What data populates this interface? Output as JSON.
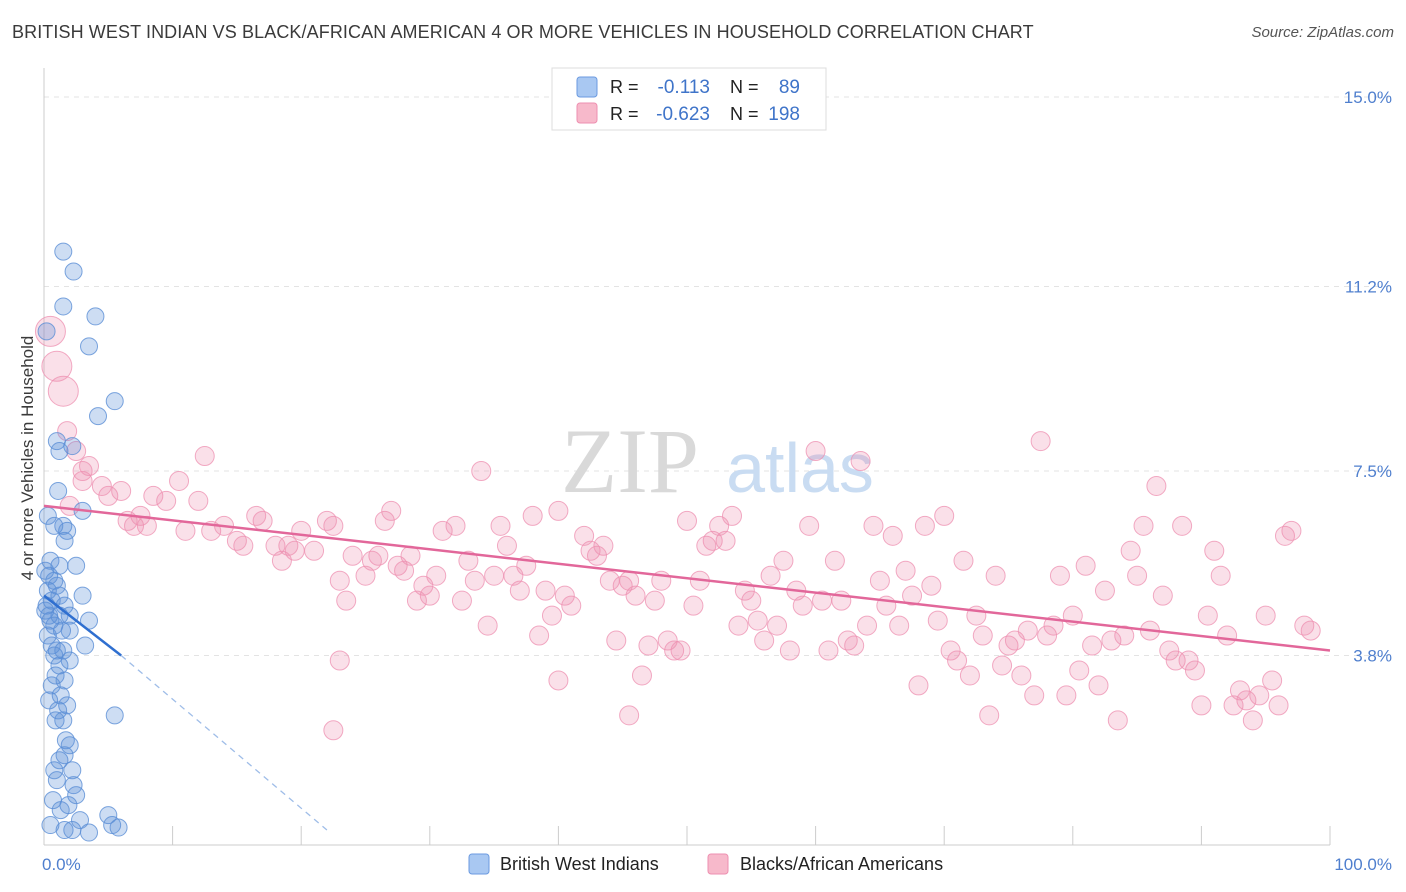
{
  "title": "BRITISH WEST INDIAN VS BLACK/AFRICAN AMERICAN 4 OR MORE VEHICLES IN HOUSEHOLD CORRELATION CHART",
  "source": "Source: ZipAtlas.com",
  "watermark": {
    "zip": "ZIP",
    "atlas": "atlas"
  },
  "legend_top": {
    "r_label": "R =",
    "n_label": "N =",
    "rows": [
      {
        "swatch": "#a9c8f2",
        "r": "-0.113",
        "n": "89"
      },
      {
        "swatch": "#f7b9cb",
        "r": "-0.623",
        "n": "198"
      }
    ]
  },
  "legend_bottom": [
    {
      "label": "British West Indians",
      "swatch": "#a9c8f2"
    },
    {
      "label": "Blacks/African Americans",
      "swatch": "#f7b9cb"
    }
  ],
  "colors": {
    "blue": "#5b8fd6",
    "blue_line": "#2f6fd0",
    "pink": "#ee8fb0",
    "pink_line": "#e2679a",
    "tick": "#4f7fce"
  },
  "chart_data": {
    "type": "scatter",
    "title": "BRITISH WEST INDIAN VS BLACK/AFRICAN AMERICAN 4 OR MORE VEHICLES IN HOUSEHOLD CORRELATION CHART",
    "xlabel": "",
    "ylabel": "4 or more Vehicles in Household",
    "xlim": [
      0,
      100
    ],
    "ylim": [
      0,
      15.5
    ],
    "x_tick_labels": [
      "0.0%",
      "100.0%"
    ],
    "y_ticks": [
      3.8,
      7.5,
      11.2,
      15.0
    ],
    "y_tick_labels": [
      "3.8%",
      "7.5%",
      "11.2%",
      "15.0%"
    ],
    "grid": true,
    "legend_position": "top-center",
    "series": [
      {
        "name": "British West Indians",
        "r": -0.113,
        "n": 89,
        "trend": {
          "x": [
            0,
            6
          ],
          "y": [
            5.0,
            3.8
          ]
        },
        "trend_extension": {
          "x": [
            6,
            22
          ],
          "y": [
            3.8,
            0.3
          ]
        },
        "points": [
          [
            1.5,
            11.9
          ],
          [
            2.3,
            11.5
          ],
          [
            1.5,
            10.8
          ],
          [
            4.0,
            10.6
          ],
          [
            0.2,
            10.3
          ],
          [
            3.5,
            10.0
          ],
          [
            5.5,
            8.9
          ],
          [
            4.2,
            8.6
          ],
          [
            2.2,
            8.0
          ],
          [
            1.0,
            8.1
          ],
          [
            1.2,
            7.9
          ],
          [
            1.1,
            7.1
          ],
          [
            3.0,
            6.7
          ],
          [
            0.3,
            6.6
          ],
          [
            1.5,
            6.4
          ],
          [
            0.8,
            6.4
          ],
          [
            1.8,
            6.3
          ],
          [
            1.6,
            6.1
          ],
          [
            0.5,
            5.7
          ],
          [
            1.2,
            5.6
          ],
          [
            2.5,
            5.6
          ],
          [
            0.1,
            5.5
          ],
          [
            0.4,
            5.4
          ],
          [
            0.8,
            5.3
          ],
          [
            1.0,
            5.2
          ],
          [
            0.3,
            5.1
          ],
          [
            3.0,
            5.0
          ],
          [
            1.2,
            5.0
          ],
          [
            0.6,
            4.9
          ],
          [
            0.2,
            4.8
          ],
          [
            1.6,
            4.8
          ],
          [
            0.1,
            4.7
          ],
          [
            0.4,
            4.6
          ],
          [
            2.0,
            4.6
          ],
          [
            1.2,
            4.6
          ],
          [
            0.5,
            4.5
          ],
          [
            3.5,
            4.5
          ],
          [
            0.8,
            4.4
          ],
          [
            1.4,
            4.3
          ],
          [
            2.0,
            4.3
          ],
          [
            0.3,
            4.2
          ],
          [
            0.6,
            4.0
          ],
          [
            3.2,
            4.0
          ],
          [
            1.0,
            3.9
          ],
          [
            1.5,
            3.9
          ],
          [
            0.8,
            3.8
          ],
          [
            2.0,
            3.7
          ],
          [
            1.2,
            3.6
          ],
          [
            0.9,
            3.4
          ],
          [
            1.6,
            3.3
          ],
          [
            0.6,
            3.2
          ],
          [
            1.3,
            3.0
          ],
          [
            0.4,
            2.9
          ],
          [
            1.8,
            2.8
          ],
          [
            1.1,
            2.7
          ],
          [
            5.5,
            2.6
          ],
          [
            1.5,
            2.5
          ],
          [
            0.9,
            2.5
          ],
          [
            1.7,
            2.1
          ],
          [
            2.0,
            2.0
          ],
          [
            1.6,
            1.8
          ],
          [
            1.2,
            1.7
          ],
          [
            2.2,
            1.5
          ],
          [
            0.8,
            1.5
          ],
          [
            1.0,
            1.3
          ],
          [
            2.3,
            1.2
          ],
          [
            2.5,
            1.0
          ],
          [
            0.7,
            0.9
          ],
          [
            1.9,
            0.8
          ],
          [
            5.0,
            0.6
          ],
          [
            5.3,
            0.4
          ],
          [
            2.2,
            0.3
          ],
          [
            1.6,
            0.3
          ],
          [
            3.5,
            0.25
          ],
          [
            5.8,
            0.35
          ],
          [
            1.3,
            0.7
          ],
          [
            2.8,
            0.5
          ],
          [
            0.5,
            0.4
          ]
        ]
      },
      {
        "name": "Blacks/African Americans",
        "r": -0.623,
        "n": 198,
        "trend": {
          "x": [
            0,
            100
          ],
          "y": [
            6.8,
            3.9
          ]
        },
        "points": [
          [
            0.5,
            10.3
          ],
          [
            1.0,
            9.6
          ],
          [
            1.5,
            9.1
          ],
          [
            1.8,
            8.3
          ],
          [
            2.5,
            7.9
          ],
          [
            3.0,
            7.5
          ],
          [
            3.5,
            7.6
          ],
          [
            4.5,
            7.2
          ],
          [
            5.0,
            7.0
          ],
          [
            6.0,
            7.1
          ],
          [
            6.5,
            6.5
          ],
          [
            7.0,
            6.4
          ],
          [
            7.5,
            6.6
          ],
          [
            8.0,
            6.4
          ],
          [
            8.5,
            7.0
          ],
          [
            9.5,
            6.9
          ],
          [
            10.5,
            7.3
          ],
          [
            11.0,
            6.3
          ],
          [
            12.0,
            6.9
          ],
          [
            12.5,
            7.8
          ],
          [
            13.0,
            6.3
          ],
          [
            14.0,
            6.4
          ],
          [
            15.0,
            6.1
          ],
          [
            15.5,
            6.0
          ],
          [
            16.5,
            6.6
          ],
          [
            17.0,
            6.5
          ],
          [
            18.0,
            6.0
          ],
          [
            18.5,
            5.7
          ],
          [
            19.0,
            6.0
          ],
          [
            19.5,
            5.9
          ],
          [
            20.0,
            6.3
          ],
          [
            21.0,
            5.9
          ],
          [
            22.0,
            6.5
          ],
          [
            22.5,
            6.4
          ],
          [
            23.0,
            5.3
          ],
          [
            23.5,
            4.9
          ],
          [
            24.0,
            5.8
          ],
          [
            25.0,
            5.4
          ],
          [
            25.5,
            5.7
          ],
          [
            26.0,
            5.8
          ],
          [
            26.5,
            6.5
          ],
          [
            27.0,
            6.7
          ],
          [
            27.5,
            5.6
          ],
          [
            28.0,
            5.5
          ],
          [
            28.5,
            5.8
          ],
          [
            29.0,
            4.9
          ],
          [
            29.5,
            5.2
          ],
          [
            30.0,
            5.0
          ],
          [
            30.5,
            5.4
          ],
          [
            31.0,
            6.3
          ],
          [
            32.0,
            6.4
          ],
          [
            32.5,
            4.9
          ],
          [
            33.0,
            5.7
          ],
          [
            33.5,
            5.3
          ],
          [
            34.0,
            7.5
          ],
          [
            34.5,
            4.4
          ],
          [
            35.0,
            5.4
          ],
          [
            35.5,
            6.4
          ],
          [
            36.0,
            6.0
          ],
          [
            36.5,
            5.4
          ],
          [
            37.0,
            5.1
          ],
          [
            37.5,
            5.6
          ],
          [
            38.0,
            6.6
          ],
          [
            38.5,
            4.2
          ],
          [
            39.0,
            5.1
          ],
          [
            39.5,
            4.6
          ],
          [
            40.0,
            6.7
          ],
          [
            40.5,
            5.0
          ],
          [
            41.0,
            4.8
          ],
          [
            42.0,
            6.2
          ],
          [
            42.5,
            5.9
          ],
          [
            43.0,
            5.8
          ],
          [
            43.5,
            6.0
          ],
          [
            44.0,
            5.3
          ],
          [
            44.5,
            4.1
          ],
          [
            45.0,
            5.2
          ],
          [
            45.5,
            5.3
          ],
          [
            46.0,
            5.0
          ],
          [
            46.5,
            3.4
          ],
          [
            47.0,
            4.0
          ],
          [
            47.5,
            4.9
          ],
          [
            48.0,
            5.3
          ],
          [
            48.5,
            4.1
          ],
          [
            49.0,
            3.9
          ],
          [
            49.5,
            3.9
          ],
          [
            50.0,
            6.5
          ],
          [
            50.5,
            4.8
          ],
          [
            51.0,
            5.3
          ],
          [
            51.5,
            6.0
          ],
          [
            52.0,
            6.1
          ],
          [
            52.5,
            6.4
          ],
          [
            53.0,
            6.1
          ],
          [
            53.5,
            6.6
          ],
          [
            54.0,
            4.4
          ],
          [
            54.5,
            5.1
          ],
          [
            55.0,
            4.9
          ],
          [
            55.5,
            4.5
          ],
          [
            56.0,
            4.1
          ],
          [
            56.5,
            5.4
          ],
          [
            57.0,
            4.4
          ],
          [
            57.5,
            5.7
          ],
          [
            58.0,
            3.9
          ],
          [
            58.5,
            5.1
          ],
          [
            59.0,
            4.8
          ],
          [
            59.5,
            6.4
          ],
          [
            60.0,
            7.9
          ],
          [
            60.5,
            4.9
          ],
          [
            61.0,
            3.9
          ],
          [
            61.5,
            5.7
          ],
          [
            62.0,
            4.9
          ],
          [
            62.5,
            4.1
          ],
          [
            63.0,
            4.0
          ],
          [
            63.5,
            7.7
          ],
          [
            64.0,
            4.4
          ],
          [
            64.5,
            6.4
          ],
          [
            65.0,
            5.3
          ],
          [
            65.5,
            4.8
          ],
          [
            66.0,
            6.2
          ],
          [
            66.5,
            4.4
          ],
          [
            67.0,
            5.5
          ],
          [
            67.5,
            5.0
          ],
          [
            68.0,
            3.2
          ],
          [
            68.5,
            6.4
          ],
          [
            69.0,
            5.2
          ],
          [
            69.5,
            4.5
          ],
          [
            70.0,
            6.6
          ],
          [
            70.5,
            3.9
          ],
          [
            71.0,
            3.7
          ],
          [
            71.5,
            5.7
          ],
          [
            72.0,
            3.4
          ],
          [
            72.5,
            4.6
          ],
          [
            73.0,
            4.2
          ],
          [
            73.5,
            2.6
          ],
          [
            74.0,
            5.4
          ],
          [
            74.5,
            3.6
          ],
          [
            75.0,
            4.0
          ],
          [
            75.5,
            4.1
          ],
          [
            76.0,
            3.4
          ],
          [
            76.5,
            4.3
          ],
          [
            77.0,
            3.0
          ],
          [
            77.5,
            8.1
          ],
          [
            78.0,
            4.2
          ],
          [
            78.5,
            4.4
          ],
          [
            79.0,
            5.4
          ],
          [
            79.5,
            3.0
          ],
          [
            80.0,
            4.6
          ],
          [
            80.5,
            3.5
          ],
          [
            81.0,
            5.6
          ],
          [
            81.5,
            4.0
          ],
          [
            82.0,
            3.2
          ],
          [
            82.5,
            5.1
          ],
          [
            83.0,
            4.1
          ],
          [
            83.5,
            2.5
          ],
          [
            84.0,
            4.2
          ],
          [
            84.5,
            5.9
          ],
          [
            85.0,
            5.4
          ],
          [
            85.5,
            6.4
          ],
          [
            86.0,
            4.3
          ],
          [
            86.5,
            7.2
          ],
          [
            87.0,
            5.0
          ],
          [
            87.5,
            3.9
          ],
          [
            88.0,
            3.7
          ],
          [
            88.5,
            6.4
          ],
          [
            89.0,
            3.7
          ],
          [
            89.5,
            3.5
          ],
          [
            90.0,
            2.8
          ],
          [
            90.5,
            4.6
          ],
          [
            91.0,
            5.9
          ],
          [
            91.5,
            5.4
          ],
          [
            92.0,
            4.2
          ],
          [
            92.5,
            2.8
          ],
          [
            93.0,
            3.1
          ],
          [
            93.5,
            2.9
          ],
          [
            94.0,
            2.5
          ],
          [
            94.5,
            3.0
          ],
          [
            95.0,
            4.6
          ],
          [
            95.5,
            3.3
          ],
          [
            96.0,
            2.8
          ],
          [
            96.5,
            6.2
          ],
          [
            97.0,
            6.3
          ],
          [
            98.0,
            4.4
          ],
          [
            98.5,
            4.3
          ],
          [
            22.5,
            2.3
          ],
          [
            23.0,
            3.7
          ],
          [
            40.0,
            3.3
          ],
          [
            45.5,
            2.6
          ],
          [
            2.0,
            6.8
          ],
          [
            3.0,
            7.3
          ]
        ]
      }
    ]
  }
}
